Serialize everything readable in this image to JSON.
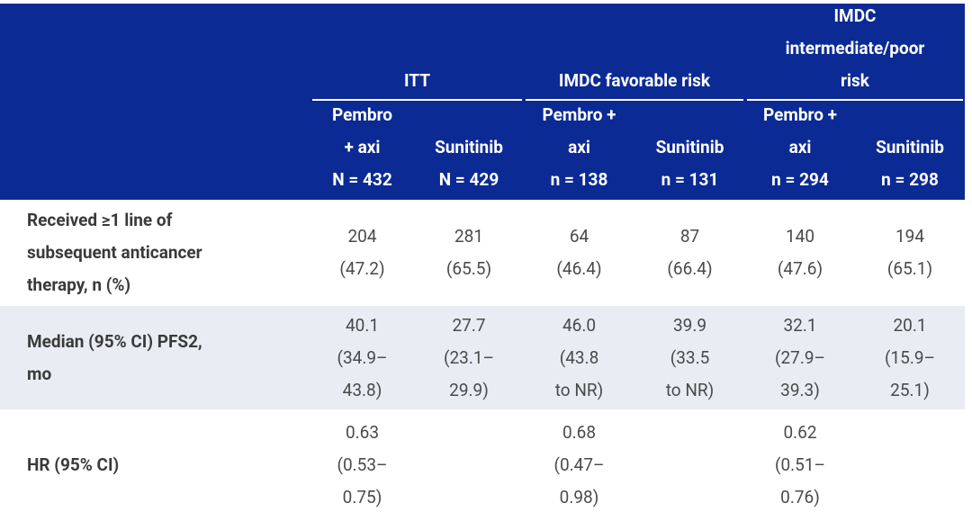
{
  "header": {
    "groups": [
      {
        "label": [
          "ITT"
        ]
      },
      {
        "label": [
          "IMDC favorable risk"
        ]
      },
      {
        "label": [
          "IMDC",
          "intermediate/poor",
          "risk"
        ]
      }
    ],
    "columns": [
      [
        "Pembro",
        "+ axi",
        "N = 432"
      ],
      [
        "Sunitinib",
        "N = 429"
      ],
      [
        "Pembro +",
        "axi",
        "n = 138"
      ],
      [
        "Sunitinib",
        "n = 131"
      ],
      [
        "Pembro +",
        "axi",
        "n = 294"
      ],
      [
        "Sunitinib",
        "n = 298"
      ]
    ]
  },
  "rows": [
    {
      "label": [
        "Received ≥1 line of",
        "subsequent anticancer",
        "therapy, n (%)"
      ],
      "cells": [
        [
          "204",
          "(47.2)"
        ],
        [
          "281",
          "(65.5)"
        ],
        [
          "64",
          "(46.4)"
        ],
        [
          "87",
          "(66.4)"
        ],
        [
          "140",
          "(47.6)"
        ],
        [
          "194",
          "(65.1)"
        ]
      ]
    },
    {
      "label": [
        "Median (95% CI) PFS2,",
        "mo"
      ],
      "cells": [
        [
          "40.1",
          "(34.9–",
          "43.8)"
        ],
        [
          "27.7",
          "(23.1–",
          "29.9)"
        ],
        [
          "46.0",
          "(43.8",
          "to NR)"
        ],
        [
          "39.9",
          "(33.5",
          "to NR)"
        ],
        [
          "32.1",
          "(27.9–",
          "39.3)"
        ],
        [
          "20.1",
          "(15.9–",
          "25.1)"
        ]
      ]
    },
    {
      "label": [
        "HR (95% CI)"
      ],
      "cells": [
        [
          "0.63",
          "(0.53–",
          "0.75)"
        ],
        [],
        [
          "0.68",
          "(0.47–",
          "0.98)"
        ],
        [],
        [
          "0.62",
          "(0.51–",
          "0.76)"
        ],
        []
      ]
    }
  ]
}
